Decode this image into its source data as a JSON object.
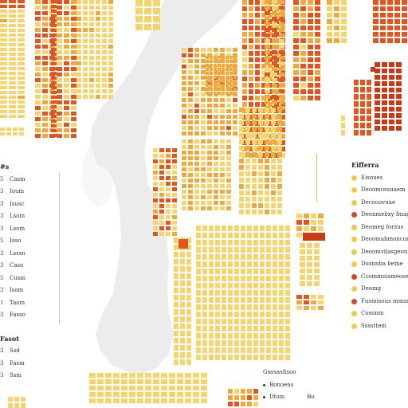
{
  "colors": {
    "water": "#ececec",
    "paper": "#ffffff",
    "light": "#f6d46c",
    "medium": "#f0a83a",
    "dark": "#e2551f",
    "darkest": "#c93a16",
    "rule_left": "#c9c9c9",
    "rule_right": "#e9b94a"
  },
  "left_panel": {
    "heading": "#s",
    "rows": [
      {
        "num": "5",
        "label": "Casm"
      },
      {
        "num": "3",
        "label": "Ioum"
      },
      {
        "num": "3",
        "label": "Isusc"
      },
      {
        "num": "3",
        "label": "Lsom"
      },
      {
        "num": "3",
        "label": "Lsom"
      },
      {
        "num": "5",
        "label": "Isso"
      },
      {
        "num": "3",
        "label": "Lsssn"
      },
      {
        "num": "3",
        "label": "Caso"
      },
      {
        "num": "5",
        "label": "Cusm"
      },
      {
        "num": "3",
        "label": "Isom"
      },
      {
        "num": "1",
        "label": "Taom"
      },
      {
        "num": "3",
        "label": "Fasso"
      }
    ],
    "heading2": "Fasot",
    "rows2": [
      {
        "num": "3",
        "label": "Ssd"
      },
      {
        "num": "3",
        "label": "Fasm"
      },
      {
        "num": "3",
        "label": "Ssm"
      }
    ]
  },
  "right_panel": {
    "heading": "Eifferra",
    "items": [
      {
        "label": "Eisoues",
        "color": "#f2c94c"
      },
      {
        "label": "Deoomossuaem",
        "color": "#f2c94c"
      },
      {
        "label": "Decooovuae",
        "color": "#f2c94c"
      },
      {
        "label": "Deonmebxy fmago",
        "color": "#d8462a"
      },
      {
        "label": "Deomeg forsus",
        "color": "#f2c94c"
      },
      {
        "label": "Deoomabmoncom",
        "color": "#f2c94c"
      },
      {
        "label": "Deoomvilasgeon",
        "color": "#f2c94c"
      },
      {
        "label": "Dsonnba beme",
        "color": "#f2c94c"
      },
      {
        "label": "Ccommnismeose",
        "color": "#d8462a"
      },
      {
        "label": "Deomg",
        "color": "#f2c94c"
      },
      {
        "label": "Fusmisous mmsr",
        "color": "#d8462a"
      },
      {
        "label": "Cosonm",
        "color": "#f2c94c"
      },
      {
        "label": "Ssssttem",
        "color": "#f2c94c"
      }
    ]
  },
  "bottom_legend": {
    "title": "Gsosasfisoo",
    "items": [
      {
        "label": "Bonoens",
        "extra": ""
      },
      {
        "label": "Dtom",
        "extra": "Bo"
      }
    ]
  }
}
